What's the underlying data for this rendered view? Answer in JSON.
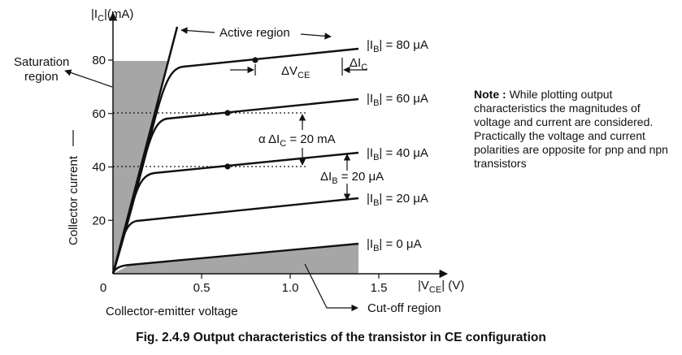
{
  "y_axis": {
    "label_pre": "|I",
    "label_sub": "C",
    "label_post": "|(mA)",
    "ticks": [
      {
        "v": 20,
        "label": "20"
      },
      {
        "v": 40,
        "label": "40"
      },
      {
        "v": 60,
        "label": "60"
      },
      {
        "v": 80,
        "label": "80"
      }
    ],
    "title": "Collector current"
  },
  "x_axis": {
    "label_pre": "|V",
    "label_sub": "CE",
    "label_post": "| (V)",
    "ticks": [
      {
        "v": 0,
        "label": "0"
      },
      {
        "v": 0.5,
        "label": "0.5"
      },
      {
        "v": 1.0,
        "label": "1.0"
      },
      {
        "v": 1.5,
        "label": "1.5"
      }
    ],
    "title": "Collector-emitter voltage"
  },
  "curves": [
    {
      "ib": 0,
      "label_pre": "|I",
      "label_sub": "B",
      "label_post": "| = 0 μA"
    },
    {
      "ib": 20,
      "label_pre": "|I",
      "label_sub": "B",
      "label_post": "| = 20 μA"
    },
    {
      "ib": 40,
      "label_pre": "|I",
      "label_sub": "B",
      "label_post": "| = 40 μA"
    },
    {
      "ib": 60,
      "label_pre": "|I",
      "label_sub": "B",
      "label_post": "| = 60 μA"
    },
    {
      "ib": 80,
      "label_pre": "|I",
      "label_sub": "B",
      "label_post": "| = 80 μA"
    }
  ],
  "regions": {
    "active": "Active region",
    "saturation_line1": "Saturation",
    "saturation_line2": "region",
    "cutoff": "Cut-off region"
  },
  "annotations": {
    "dvce_pre": "ΔV",
    "dvce_sub": "CE",
    "dic_pre": "ΔI",
    "dic_sub": "C",
    "alpha_pre": "α ΔI",
    "alpha_sub": "C",
    "alpha_post": " = 20 mA",
    "dib_pre": "ΔI",
    "dib_sub": "B",
    "dib_post": " = 20 μA"
  },
  "note": {
    "bold": "Note :",
    "text": "While plotting output characteristics the magnitudes of voltage and current are considered. Practically the voltage and current polarities are opposite for pnp and npn transistors"
  },
  "caption": "Fig. 2.4.9 Output characteristics of the transistor in CE configuration",
  "colors": {
    "ink": "#111111",
    "shade": "#a6a6a6"
  }
}
